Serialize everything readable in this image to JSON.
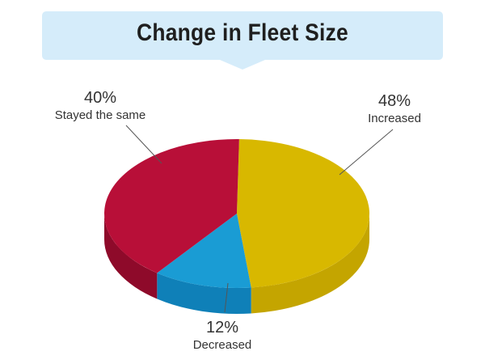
{
  "chart_data": {
    "type": "pie",
    "title": "Change in Fleet Size",
    "slices": [
      {
        "label": "Increased",
        "value": 48,
        "value_label": "48%",
        "color": "#d8b800",
        "side_color": "#c4a500"
      },
      {
        "label": "Decreased",
        "value": 12,
        "value_label": "12%",
        "color": "#1a9cd4",
        "side_color": "#0f80b8"
      },
      {
        "label": "Stayed the same",
        "value": 40,
        "value_label": "40%",
        "color": "#b80f38",
        "side_color": "#8e0a2a"
      }
    ],
    "style": "3d",
    "legend": "none"
  },
  "colors": {
    "title_banner": "#d5ecfa"
  }
}
